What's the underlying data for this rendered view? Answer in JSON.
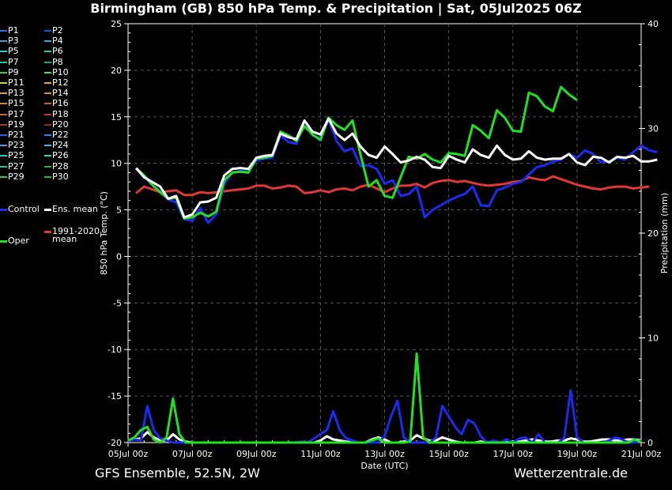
{
  "header": {
    "title": "Birmingham  (GB)  850 hPa Temp. & Precipitation | Sat, 05Jul2025 06Z"
  },
  "footer": {
    "left": "GFS Ensemble, 52.5N, 2W",
    "right": "Wetterzentrale.de"
  },
  "legend": {
    "members": [
      "P1",
      "P2",
      "P3",
      "P4",
      "P5",
      "P6",
      "P7",
      "P8",
      "P9",
      "P10",
      "P11",
      "P12",
      "P13",
      "P14",
      "P15",
      "P16",
      "P17",
      "P18",
      "P19",
      "P20",
      "P21",
      "P22",
      "P23",
      "P24",
      "P25",
      "P26",
      "P27",
      "P28",
      "P29",
      "P30"
    ],
    "member_colors": [
      "#3a6cf0",
      "#2a4fd6",
      "#3aa0d0",
      "#2bb0e0",
      "#36c6c6",
      "#2ad28a",
      "#22c4a0",
      "#1fae5a",
      "#39d639",
      "#56e05a",
      "#d9d430",
      "#e0b040",
      "#e0a030",
      "#e08a28",
      "#d0804a",
      "#c06040",
      "#d06a30",
      "#c03a20",
      "#b03030",
      "#a02020",
      "#2a5de0",
      "#3a80e0",
      "#4aa0e8",
      "#40b8e0",
      "#30c8c8",
      "#28d8a8",
      "#30c090",
      "#20a860",
      "#30d040",
      "#20c020"
    ],
    "control": "Control",
    "ens_mean": "Ens. mean",
    "clim_mean_line1": "1991-2020",
    "clim_mean_line2": "mean",
    "oper": "Oper",
    "control_color": "#1a2cf0",
    "ens_mean_color": "#ffffff",
    "clim_color": "#e03838",
    "oper_color": "#22e022"
  },
  "chart_data": {
    "type": "line",
    "title": "Birmingham  (GB)  850 hPa Temp. & Precipitation | Sat, 05Jul2025 06Z",
    "xlabel": "Date (UTC)",
    "ylabel": "850 hPa Temp. (°C)",
    "y2label": "Precipitation (mm)",
    "x_ticks": [
      "05Jul 00z",
      "07Jul 00z",
      "09Jul 00z",
      "11Jul 00z",
      "13Jul 00z",
      "15Jul 00z",
      "17Jul 00z",
      "19Jul 00z",
      "21Jul 00z"
    ],
    "ylim": [
      -20,
      25
    ],
    "y_ticks": [
      25,
      20,
      15,
      10,
      5,
      0,
      -5,
      -10,
      -15,
      -20
    ],
    "y2lim": [
      0,
      40
    ],
    "y2_ticks": [
      40,
      30,
      20,
      10,
      0
    ],
    "grid": true,
    "x_start_hour": 6,
    "x_step_hours": 6,
    "x_end_hour": 384,
    "series": [
      {
        "name": "Ens. mean",
        "values": [
          9.5,
          8.5,
          8,
          7.5,
          6.2,
          6.5,
          4.2,
          4.5,
          5.8,
          5.9,
          6.3,
          8.7,
          9.4,
          9.5,
          9.4,
          10.6,
          10.8,
          10.9,
          13.2,
          12.8,
          12.6,
          14.6,
          13.4,
          13.1,
          14.8,
          13.2,
          12.5,
          13.2,
          11.8,
          10.9,
          10.6,
          11.8,
          11.0,
          10.1,
          10.3,
          10.7,
          10.4,
          9.6,
          9.5,
          10.8,
          10.4,
          10.1,
          11.5,
          10.9,
          10.6,
          11.9,
          10.9,
          10.4,
          10.5,
          11.3,
          10.6,
          10.4,
          10.5,
          10.5,
          11.0,
          10.1,
          9.8,
          10.7,
          10.6,
          10.1,
          10.7,
          10.6,
          10.8,
          10.2,
          10.2,
          10.4
        ]
      },
      {
        "name": "Control",
        "values": [
          9.4,
          8.6,
          7.7,
          7.0,
          6.1,
          5.8,
          4.0,
          3.8,
          5.2,
          3.6,
          4.5,
          7.8,
          9.0,
          9.2,
          9.1,
          10.3,
          10.5,
          10.6,
          13.0,
          12.3,
          12.1,
          14.6,
          13.0,
          12.7,
          14.7,
          12.4,
          11.3,
          11.6,
          9.7,
          9.8,
          9.4,
          7.8,
          8.2,
          6.5,
          6.7,
          7.5,
          4.2,
          5.0,
          5.5,
          6.0,
          6.4,
          6.7,
          7.5,
          5.5,
          5.4,
          7.1,
          7.4,
          7.8,
          8.0,
          8.8,
          9.6,
          9.8,
          10.2,
          10.4,
          11.0,
          10.6,
          11.4,
          11.0,
          10.1,
          10.2,
          10.6,
          10.4,
          11.2,
          11.9,
          11.4,
          11.2
        ]
      },
      {
        "name": "Oper",
        "values": [
          9.5,
          8.7,
          7.7,
          6.9,
          6.2,
          6.3,
          4.1,
          4.2,
          4.7,
          4.3,
          4.8,
          8.2,
          9.0,
          9.1,
          9.0,
          10.5,
          10.6,
          10.8,
          13.4,
          13.0,
          12.4,
          14.0,
          13.1,
          12.5,
          14.9,
          14.1,
          13.6,
          14.6,
          10.9,
          7.5,
          8.2,
          6.5,
          6.3,
          8.5,
          10.7,
          10.5,
          11.0,
          10.4,
          10.1,
          11.1,
          11.0,
          10.8,
          14.1,
          13.5,
          12.7,
          15.7,
          14.9,
          13.5,
          13.4,
          17.6,
          17.2,
          16.1,
          15.6,
          18.2,
          17.4,
          16.8
        ]
      },
      {
        "name": "1991-2020 mean",
        "values": [
          6.8,
          7.5,
          7.2,
          6.9,
          7.0,
          7.1,
          6.6,
          6.6,
          6.9,
          6.8,
          6.9,
          7.0,
          7.1,
          7.2,
          7.3,
          7.6,
          7.6,
          7.3,
          7.4,
          7.6,
          7.5,
          6.8,
          6.9,
          7.1,
          6.9,
          7.2,
          7.3,
          7.1,
          7.5,
          7.7,
          7.3,
          6.9,
          7.3,
          7.6,
          7.6,
          7.8,
          7.4,
          7.9,
          8.1,
          8.2,
          8.0,
          8.1,
          7.9,
          7.7,
          7.6,
          7.7,
          7.8,
          8.0,
          8.1,
          8.5,
          8.3,
          8.2,
          8.6,
          8.3,
          8.0,
          7.7,
          7.5,
          7.3,
          7.2,
          7.4,
          7.5,
          7.5,
          7.3,
          7.4,
          7.5
        ]
      },
      {
        "name": "Control precipitation",
        "axis": "y2",
        "values": [
          0.1,
          0.3,
          0.2,
          3.5,
          1.2,
          0.4,
          0.2,
          0,
          0,
          0,
          0,
          0,
          0,
          0,
          0,
          0,
          0,
          0,
          0,
          0,
          0,
          0,
          0,
          0,
          0,
          0,
          0,
          0.1,
          0,
          0.4,
          0.8,
          1.2,
          3.0,
          1.2,
          0.4,
          0.2,
          0,
          0,
          0,
          0,
          0.6,
          2.5,
          4.0,
          0.5,
          0,
          0,
          0,
          0,
          0.5,
          3.5,
          2.5,
          1.5,
          0.8,
          2.2,
          1.8,
          0.6,
          0,
          0.2,
          0,
          0.3,
          0,
          0.4,
          0.5,
          0,
          0.8,
          0,
          0,
          0,
          0.4,
          5.0,
          0.5,
          0,
          0,
          0,
          0,
          0.2,
          0.5,
          0.3,
          0,
          0,
          0.2
        ]
      },
      {
        "name": "Oper precipitation",
        "axis": "y2",
        "values": [
          0.2,
          0.5,
          1.2,
          1.5,
          0.3,
          0,
          0.5,
          4.2,
          0.8,
          0,
          0,
          0,
          0,
          0,
          0,
          0,
          0,
          0,
          0,
          0,
          0,
          0,
          0,
          0,
          0,
          0,
          0,
          0,
          0,
          0,
          0,
          0,
          0,
          0,
          0,
          0,
          0,
          0,
          0.2,
          0.4,
          0,
          0,
          0,
          0,
          0.1,
          8.5,
          0.5,
          0,
          0,
          0,
          0,
          0,
          0,
          0,
          0,
          0,
          0,
          0,
          0,
          0,
          0,
          0,
          0,
          0,
          0,
          0,
          0,
          0,
          0,
          0,
          0,
          0,
          0,
          0,
          0,
          0,
          0,
          0,
          0,
          0.3,
          0
        ]
      },
      {
        "name": "Ens. mean precipitation",
        "axis": "y2",
        "values": [
          0.2,
          0.3,
          0.4,
          1.0,
          0.5,
          0.2,
          0.2,
          0.8,
          0.3,
          0.1,
          0,
          0,
          0,
          0,
          0,
          0,
          0,
          0,
          0,
          0,
          0,
          0,
          0,
          0,
          0,
          0,
          0,
          0,
          0,
          0,
          0.2,
          0.6,
          0.3,
          0.2,
          0.1,
          0,
          0,
          0,
          0.3,
          0.5,
          0.3,
          0,
          0,
          0.1,
          0.2,
          0.7,
          0.4,
          0.2,
          0.2,
          0.5,
          0.3,
          0.1,
          0,
          0,
          0,
          0.1,
          0,
          0,
          0,
          0.1,
          0.1,
          0.1,
          0.2,
          0.3,
          0.2,
          0.1,
          0.1,
          0.2,
          0.2,
          0.4,
          0.3,
          0.1,
          0.1,
          0.2,
          0.3,
          0.3,
          0.2,
          0.2,
          0.3,
          0.3,
          0.2
        ]
      }
    ]
  }
}
